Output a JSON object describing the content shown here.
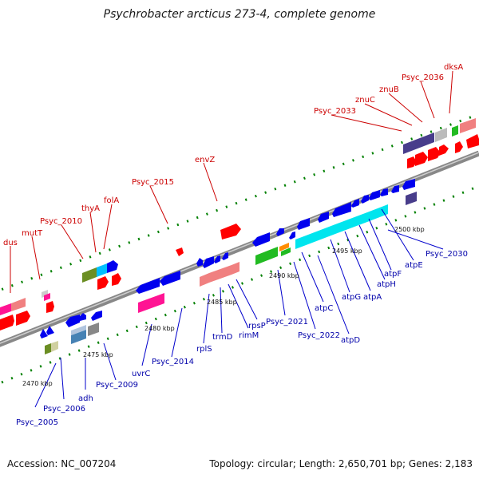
{
  "title": "Psychrobacter arcticus 273-4, complete genome",
  "accession": "Accession: NC_007204",
  "summary": "Topology: circular; Length: 2,650,701 bp; Genes: 2,183",
  "colors": {
    "line_up": "#cc0000",
    "line_down": "#0000cc",
    "backbone": "#888888",
    "tick": "#008000"
  },
  "scale_labels": [
    "2470 kbp",
    "2475 kbp",
    "2480 kbp",
    "2485 kbp",
    "2490 kbp",
    "2495 kbp",
    "2500 kbp"
  ],
  "upper_labels": [
    "dus",
    "mutT",
    "Psyc_2010",
    "thyA",
    "folA",
    "Psyc_2015",
    "envZ",
    "Psyc_2033",
    "znuC",
    "znuB",
    "Psyc_2036",
    "dksA"
  ],
  "lower_labels": [
    "Psyc_2005",
    "Psyc_2006",
    "adh",
    "Psyc_2009",
    "uvrC",
    "Psyc_2014",
    "rplS",
    "trmD",
    "rimM",
    "rpsP",
    "Psyc_2021",
    "Psyc_2022",
    "atpC",
    "atpD",
    "atpG",
    "atpA",
    "atpH",
    "atpF",
    "atpE",
    "Psyc_2030"
  ]
}
